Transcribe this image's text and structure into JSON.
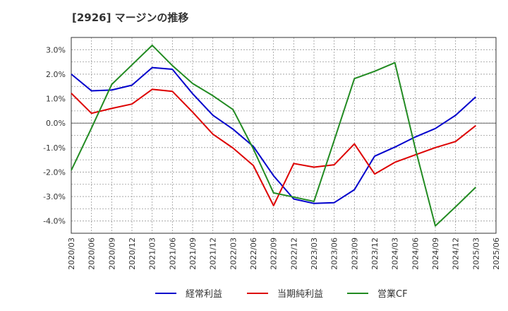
{
  "chart_data": {
    "type": "line",
    "title": "[2926]  マージンの推移",
    "xlabel": "",
    "ylabel": "",
    "ylim": [
      -4.5,
      3.5
    ],
    "y_ticks": [
      "3.0%",
      "2.0%",
      "1.0%",
      "0.0%",
      "-1.0%",
      "-2.0%",
      "-3.0%",
      "-4.0%"
    ],
    "y_tick_values": [
      3,
      2,
      1,
      0,
      -1,
      -2,
      -3,
      -4
    ],
    "x_ticks": [
      "2020/03",
      "2020/06",
      "2020/09",
      "2020/12",
      "2021/03",
      "2021/06",
      "2021/09",
      "2021/12",
      "2022/03",
      "2022/06",
      "2022/09",
      "2022/12",
      "2023/03",
      "2023/06",
      "2023/09",
      "2023/12",
      "2024/03",
      "2024/06",
      "2024/09",
      "2024/12",
      "2025/03",
      "2025/06"
    ],
    "grid": true,
    "legend_position": "bottom",
    "series": [
      {
        "name": "経常利益",
        "color": "#0000cc",
        "values": [
          2.0,
          1.32,
          1.35,
          1.55,
          2.27,
          2.2,
          1.2,
          0.32,
          -0.25,
          -0.95,
          -2.15,
          -3.1,
          -3.28,
          -3.25,
          -2.72,
          -1.35,
          -0.98,
          -0.57,
          -0.22,
          0.32,
          1.07
        ]
      },
      {
        "name": "当期純利益",
        "color": "#dd0000",
        "values": [
          1.22,
          0.4,
          0.6,
          0.78,
          1.38,
          1.3,
          0.45,
          -0.45,
          -1.02,
          -1.73,
          -3.37,
          -1.65,
          -1.8,
          -1.7,
          -0.85,
          -2.08,
          -1.6,
          -1.3,
          -1.0,
          -0.75,
          -0.1
        ]
      },
      {
        "name": "営業CF",
        "color": "#228b22",
        "values": [
          -1.93,
          -0.2,
          1.58,
          2.38,
          3.18,
          2.35,
          1.62,
          1.12,
          0.55,
          -1.05,
          -2.85,
          -3.02,
          -3.2,
          -0.7,
          1.82,
          2.12,
          2.47,
          -1.0,
          -4.2,
          -3.42,
          -2.62
        ]
      }
    ]
  }
}
